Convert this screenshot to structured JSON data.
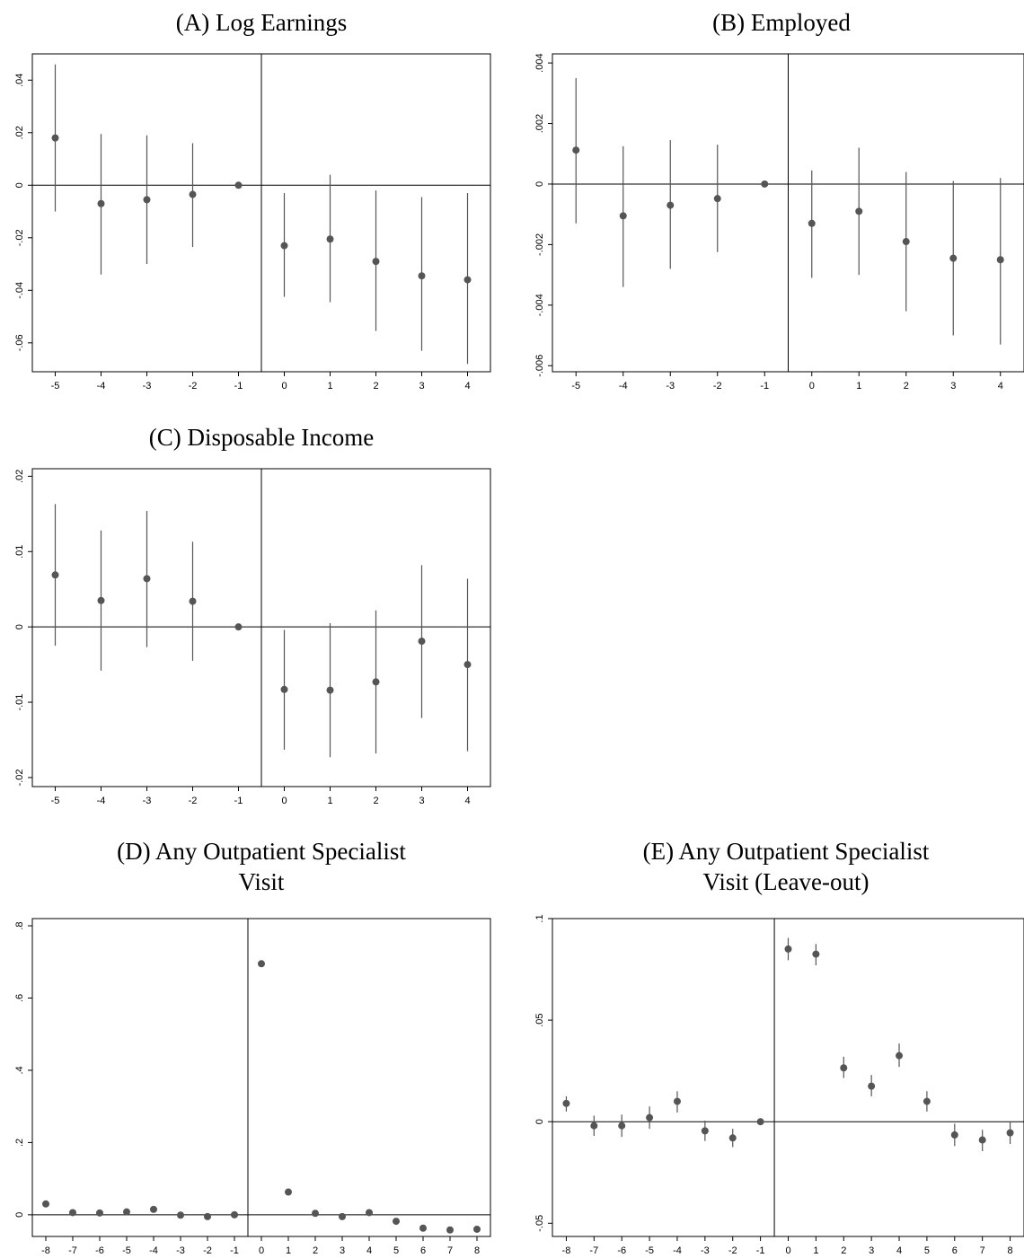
{
  "chart_data": [
    {
      "type": "scatter",
      "title": "(A) Log Earnings",
      "xlabel": "",
      "ylabel": "",
      "x": [
        -5,
        -4,
        -3,
        -2,
        -1,
        0,
        1,
        2,
        3,
        4
      ],
      "x_ticks": [
        -5,
        -4,
        -3,
        -2,
        -1,
        0,
        1,
        2,
        3,
        4
      ],
      "x_tick_labels": [
        "-5",
        "-4",
        "-3",
        "-2",
        "-1",
        "0",
        "1",
        "2",
        "3",
        "4"
      ],
      "xlim": [
        -5.5,
        4.5
      ],
      "ylim": [
        -0.071,
        0.05
      ],
      "y_ticks": [
        -0.06,
        -0.04,
        -0.02,
        0,
        0.02,
        0.04
      ],
      "y_tick_labels": [
        "-.06",
        "-.04",
        "-.02",
        "0",
        ".02",
        ".04"
      ],
      "series": [
        {
          "y": [
            0.018,
            -0.007,
            -0.0055,
            -0.0035,
            0,
            -0.023,
            -0.0205,
            -0.029,
            -0.0345,
            -0.036
          ],
          "ci_low": [
            -0.01,
            -0.034,
            -0.03,
            -0.0235,
            0,
            -0.0425,
            -0.0445,
            -0.0555,
            -0.063,
            -0.068
          ],
          "ci_high": [
            0.046,
            0.0195,
            0.019,
            0.016,
            0,
            -0.003,
            0.004,
            -0.002,
            -0.0045,
            -0.003
          ]
        }
      ],
      "vline_x": -0.5,
      "hline_y": 0,
      "grid": false
    },
    {
      "type": "scatter",
      "title": "(B) Employed",
      "xlabel": "",
      "ylabel": "",
      "x": [
        -5,
        -4,
        -3,
        -2,
        -1,
        0,
        1,
        2,
        3,
        4
      ],
      "x_ticks": [
        -5,
        -4,
        -3,
        -2,
        -1,
        0,
        1,
        2,
        3,
        4
      ],
      "x_tick_labels": [
        "-5",
        "-4",
        "-3",
        "-2",
        "-1",
        "0",
        "1",
        "2",
        "3",
        "4"
      ],
      "xlim": [
        -5.5,
        4.5
      ],
      "ylim": [
        -0.0062,
        0.0043
      ],
      "y_ticks": [
        -0.006,
        -0.004,
        -0.002,
        0,
        0.002,
        0.004
      ],
      "y_tick_labels": [
        "-.006",
        "-.004",
        "-.002",
        "0",
        ".002",
        ".004"
      ],
      "series": [
        {
          "y": [
            0.00112,
            -0.00105,
            -0.0007,
            -0.00048,
            0,
            -0.0013,
            -0.0009,
            -0.0019,
            -0.00245,
            -0.0025
          ],
          "ci_low": [
            -0.0013,
            -0.0034,
            -0.0028,
            -0.00225,
            0,
            -0.0031,
            -0.003,
            -0.0042,
            -0.005,
            -0.0053
          ],
          "ci_high": [
            0.0035,
            0.00125,
            0.00145,
            0.0013,
            0,
            0.00045,
            0.0012,
            0.0004,
            0.0001,
            0.0002
          ]
        }
      ],
      "vline_x": -0.5,
      "hline_y": 0,
      "grid": false
    },
    {
      "type": "scatter",
      "title": "(C) Disposable Income",
      "xlabel": "",
      "ylabel": "",
      "x": [
        -5,
        -4,
        -3,
        -2,
        -1,
        0,
        1,
        2,
        3,
        4
      ],
      "x_ticks": [
        -5,
        -4,
        -3,
        -2,
        -1,
        0,
        1,
        2,
        3,
        4
      ],
      "x_tick_labels": [
        "-5",
        "-4",
        "-3",
        "-2",
        "-1",
        "0",
        "1",
        "2",
        "3",
        "4"
      ],
      "xlim": [
        -5.5,
        4.5
      ],
      "ylim": [
        -0.0212,
        0.021
      ],
      "y_ticks": [
        -0.02,
        -0.01,
        0,
        0.01,
        0.02
      ],
      "y_tick_labels": [
        "-.02",
        "-.01",
        "0",
        ".01",
        ".02"
      ],
      "series": [
        {
          "y": [
            0.0069,
            0.0035,
            0.0064,
            0.0034,
            0,
            -0.0083,
            -0.0084,
            -0.0073,
            -0.0019,
            -0.005
          ],
          "ci_low": [
            -0.0025,
            -0.0058,
            -0.0027,
            -0.0045,
            0,
            -0.0163,
            -0.0173,
            -0.0168,
            -0.0121,
            -0.0165
          ],
          "ci_high": [
            0.0163,
            0.0128,
            0.0154,
            0.0113,
            0,
            -0.0004,
            0.0005,
            0.0022,
            0.0082,
            0.0064
          ]
        }
      ],
      "vline_x": -0.5,
      "hline_y": 0,
      "grid": false
    },
    {
      "type": "scatter",
      "title": "(D) Any Outpatient Specialist Visit",
      "title_lines": [
        "(D) Any Outpatient Specialist",
        "Visit"
      ],
      "xlabel": "",
      "ylabel": "",
      "x": [
        -8,
        -7,
        -6,
        -5,
        -4,
        -3,
        -2,
        -1,
        0,
        1,
        2,
        3,
        4,
        5,
        6,
        7,
        8
      ],
      "x_ticks": [
        -8,
        -7,
        -6,
        -5,
        -4,
        -3,
        -2,
        -1,
        0,
        1,
        2,
        3,
        4,
        5,
        6,
        7,
        8
      ],
      "x_tick_labels": [
        "-8",
        "-7",
        "-6",
        "-5",
        "-4",
        "-3",
        "-2",
        "-1",
        "0",
        "1",
        "2",
        "3",
        "4",
        "5",
        "6",
        "7",
        "8"
      ],
      "xlim": [
        -8.5,
        8.5
      ],
      "ylim": [
        -0.06,
        0.82
      ],
      "y_ticks": [
        0,
        0.2,
        0.4,
        0.6,
        0.8
      ],
      "y_tick_labels": [
        "0",
        ".2",
        ".4",
        ".6",
        ".8"
      ],
      "series": [
        {
          "y": [
            0.03,
            0.006,
            0.005,
            0.008,
            0.015,
            -0.001,
            -0.005,
            0,
            0.695,
            0.063,
            0.004,
            -0.005,
            0.006,
            -0.018,
            -0.037,
            -0.042,
            -0.04
          ],
          "ci_low": [
            0.027,
            0.003,
            0.002,
            0.005,
            0.012,
            -0.004,
            -0.008,
            0,
            0.691,
            0.06,
            0.001,
            -0.008,
            0.003,
            -0.021,
            -0.04,
            -0.045,
            -0.043
          ],
          "ci_high": [
            0.033,
            0.009,
            0.008,
            0.011,
            0.018,
            0.002,
            -0.002,
            0,
            0.699,
            0.066,
            0.007,
            -0.002,
            0.009,
            -0.015,
            -0.034,
            -0.039,
            -0.037
          ]
        }
      ],
      "vline_x": -0.5,
      "hline_y": 0,
      "grid": false
    },
    {
      "type": "scatter",
      "title": "(E) Any Outpatient Specialist Visit (Leave-out)",
      "title_lines": [
        "(E) Any Outpatient Specialist",
        "Visit (Leave-out)"
      ],
      "xlabel": "",
      "ylabel": "",
      "x": [
        -8,
        -7,
        -6,
        -5,
        -4,
        -3,
        -2,
        -1,
        0,
        1,
        2,
        3,
        4,
        5,
        6,
        7,
        8
      ],
      "x_ticks": [
        -8,
        -7,
        -6,
        -5,
        -4,
        -3,
        -2,
        -1,
        0,
        1,
        2,
        3,
        4,
        5,
        6,
        7,
        8
      ],
      "x_tick_labels": [
        "-8",
        "-7",
        "-6",
        "-5",
        "-4",
        "-3",
        "-2",
        "-1",
        "0",
        "1",
        "2",
        "3",
        "4",
        "5",
        "6",
        "7",
        "8"
      ],
      "xlim": [
        -8.5,
        8.5
      ],
      "ylim": [
        -0.0565,
        0.1
      ],
      "y_ticks": [
        -0.05,
        0,
        0.05,
        0.1
      ],
      "y_tick_labels": [
        "-.05",
        "0",
        ".05",
        ".1"
      ],
      "series": [
        {
          "y": [
            0.009,
            -0.002,
            -0.002,
            0.002,
            0.01,
            -0.0045,
            -0.008,
            0,
            0.085,
            0.0825,
            0.0265,
            0.0175,
            0.0325,
            0.01,
            -0.0065,
            -0.009,
            -0.0055
          ],
          "ci_low": [
            0.005,
            -0.007,
            -0.0075,
            -0.0035,
            0.0045,
            -0.0095,
            -0.0125,
            0,
            0.0795,
            0.077,
            0.0215,
            0.0125,
            0.027,
            0.005,
            -0.012,
            -0.0145,
            -0.011
          ],
          "ci_high": [
            0.0125,
            0.003,
            0.0035,
            0.0075,
            0.015,
            0.0005,
            -0.0035,
            0,
            0.0905,
            0.0875,
            0.032,
            0.023,
            0.0385,
            0.015,
            -0.001,
            -0.004,
            0
          ]
        }
      ],
      "vline_x": -0.5,
      "hline_y": 0,
      "grid": false
    }
  ]
}
